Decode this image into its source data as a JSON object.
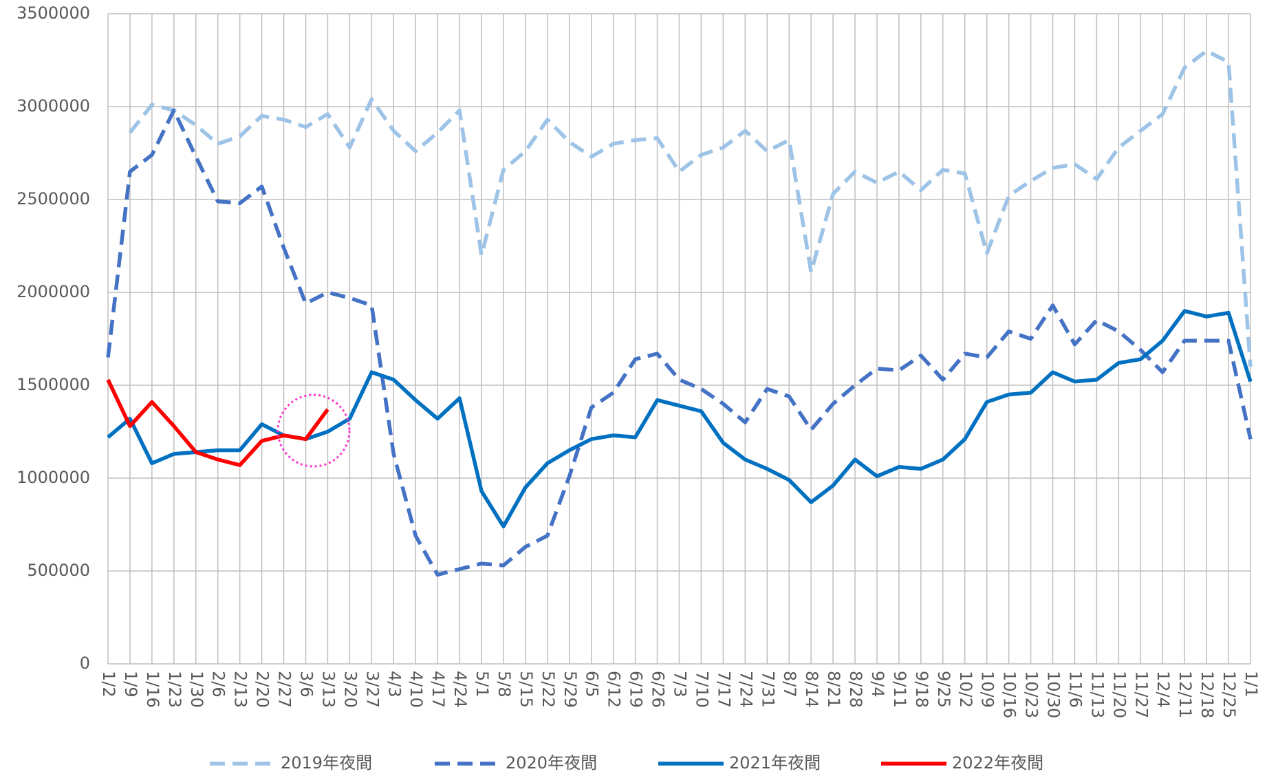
{
  "chart_data": {
    "type": "line",
    "categories": [
      "1/2",
      "1/9",
      "1/16",
      "1/23",
      "1/30",
      "2/6",
      "2/13",
      "2/20",
      "2/27",
      "3/6",
      "3/13",
      "3/20",
      "3/27",
      "4/3",
      "4/10",
      "4/17",
      "4/24",
      "5/1",
      "5/8",
      "5/15",
      "5/22",
      "5/29",
      "6/5",
      "6/12",
      "6/19",
      "6/26",
      "7/3",
      "7/10",
      "7/17",
      "7/24",
      "7/31",
      "8/7",
      "8/14",
      "8/21",
      "8/28",
      "9/4",
      "9/11",
      "9/18",
      "9/25",
      "10/2",
      "10/9",
      "10/16",
      "10/23",
      "10/30",
      "11/6",
      "11/13",
      "11/20",
      "11/27",
      "12/4",
      "12/11",
      "12/18",
      "12/25",
      "1/1"
    ],
    "series": [
      {
        "name": "2019年夜間",
        "color": "#9dc3e6",
        "line_style": "dashed",
        "values": [
          null,
          2860000,
          3010000,
          2980000,
          2900000,
          2800000,
          2840000,
          2950000,
          2930000,
          2890000,
          2960000,
          2780000,
          3040000,
          2870000,
          2760000,
          2860000,
          2980000,
          2200000,
          2660000,
          2760000,
          2930000,
          2810000,
          2730000,
          2800000,
          2820000,
          2830000,
          2650000,
          2740000,
          2780000,
          2870000,
          2760000,
          2820000,
          2110000,
          2530000,
          2650000,
          2590000,
          2650000,
          2550000,
          2660000,
          2640000,
          2210000,
          2520000,
          2600000,
          2670000,
          2690000,
          2610000,
          2780000,
          2870000,
          2960000,
          3210000,
          3300000,
          3240000,
          1600000
        ]
      },
      {
        "name": "2020年夜間",
        "color": "#4472c4",
        "line_style": "dashed",
        "values": [
          1650000,
          2650000,
          2740000,
          2980000,
          2730000,
          2490000,
          2480000,
          2570000,
          2240000,
          1940000,
          2000000,
          1970000,
          1930000,
          1130000,
          690000,
          480000,
          510000,
          540000,
          530000,
          630000,
          690000,
          1010000,
          1380000,
          1460000,
          1640000,
          1670000,
          1530000,
          1480000,
          1400000,
          1300000,
          1480000,
          1440000,
          1260000,
          1400000,
          1500000,
          1590000,
          1580000,
          1660000,
          1530000,
          1670000,
          1650000,
          1790000,
          1750000,
          1930000,
          1720000,
          1850000,
          1790000,
          1690000,
          1570000,
          1740000,
          1740000,
          1740000,
          1210000
        ]
      },
      {
        "name": "2021年夜間",
        "color": "#0070c0",
        "line_style": "solid",
        "values": [
          1220000,
          1320000,
          1080000,
          1130000,
          1140000,
          1150000,
          1150000,
          1290000,
          1230000,
          1210000,
          1250000,
          1320000,
          1570000,
          1530000,
          1420000,
          1320000,
          1430000,
          930000,
          740000,
          950000,
          1080000,
          1150000,
          1210000,
          1230000,
          1220000,
          1420000,
          1390000,
          1360000,
          1190000,
          1100000,
          1050000,
          990000,
          870000,
          960000,
          1100000,
          1010000,
          1060000,
          1050000,
          1100000,
          1210000,
          1410000,
          1450000,
          1460000,
          1570000,
          1520000,
          1530000,
          1620000,
          1640000,
          1740000,
          1900000,
          1870000,
          1890000,
          1520000
        ]
      },
      {
        "name": "2022年夜間",
        "color": "#ff0000",
        "line_style": "solid",
        "values": [
          1530000,
          1280000,
          1410000,
          1280000,
          1140000,
          1100000,
          1070000,
          1200000,
          1230000,
          1210000,
          1370000,
          null,
          null,
          null,
          null,
          null,
          null,
          null,
          null,
          null,
          null,
          null,
          null,
          null,
          null,
          null,
          null,
          null,
          null,
          null,
          null,
          null,
          null,
          null,
          null,
          null,
          null,
          null,
          null,
          null,
          null,
          null,
          null,
          null,
          null,
          null,
          null,
          null,
          null,
          null,
          null,
          null,
          null
        ]
      }
    ],
    "ylim": [
      0,
      3500000
    ],
    "yticks": [
      0,
      500000,
      1000000,
      1500000,
      2000000,
      2500000,
      3000000,
      3500000
    ],
    "grid": true,
    "legend": "bottom"
  }
}
